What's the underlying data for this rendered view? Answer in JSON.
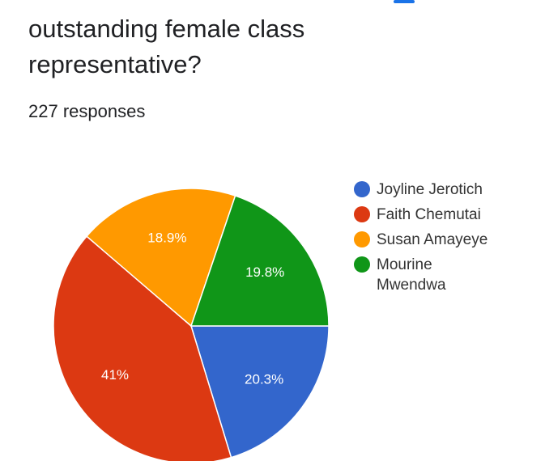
{
  "chart_data": {
    "type": "pie",
    "title": "outstanding female class representative?",
    "subtitle": "227 responses",
    "categories": [
      "Joyline Jerotich",
      "Faith Chemutai",
      "Susan Amayeye",
      "Mourine Mwendwa"
    ],
    "values": [
      20.3,
      41,
      18.9,
      19.8
    ],
    "value_labels": [
      "20.3%",
      "41%",
      "18.9%",
      "19.8%"
    ],
    "colors": [
      "#3366cc",
      "#dc3912",
      "#ff9900",
      "#109618"
    ],
    "legend": "right"
  }
}
